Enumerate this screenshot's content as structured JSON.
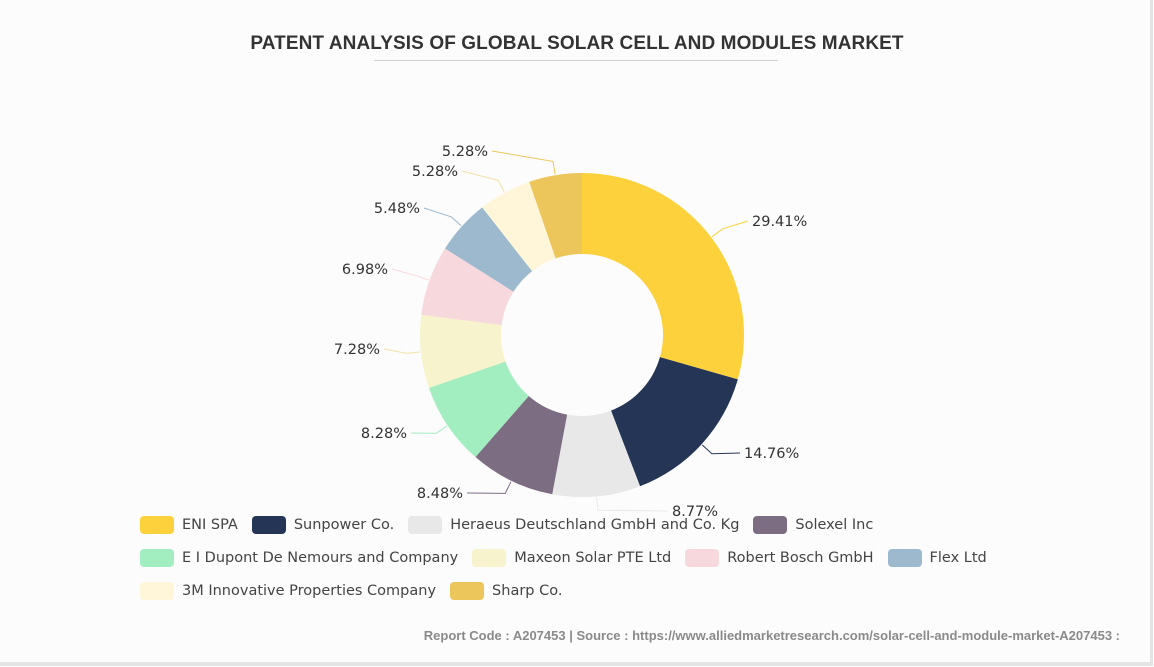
{
  "title": "PATENT ANALYSIS OF GLOBAL SOLAR CELL AND MODULES MARKET",
  "footer": "Report Code : A207453  |  Source : https://www.alliedmarketresearch.com/solar-cell-and-module-market-A207453 :",
  "chart_data": {
    "type": "pie",
    "donut": true,
    "legend_position": "bottom",
    "slices": [
      {
        "label": "ENI SPA",
        "value": 29.41,
        "display": "29.41%",
        "color": "#fdd13b"
      },
      {
        "label": "Sunpower Co.",
        "value": 14.76,
        "display": "14.76%",
        "color": "#243556"
      },
      {
        "label": "Heraeus Deutschland GmbH and Co. Kg",
        "value": 8.77,
        "display": "8.77%",
        "color": "#e8e8e8"
      },
      {
        "label": "Solexel Inc",
        "value": 8.48,
        "display": "8.48%",
        "color": "#7c6d82"
      },
      {
        "label": "E I Dupont De Nemours and Company",
        "value": 8.28,
        "display": "8.28%",
        "color": "#a2eec0"
      },
      {
        "label": "Maxeon Solar PTE Ltd",
        "value": 7.28,
        "display": "7.28%",
        "color": "#f7f3cc"
      },
      {
        "label": "Robert Bosch GmbH",
        "value": 6.98,
        "display": "6.98%",
        "color": "#f7d8dc"
      },
      {
        "label": "Flex Ltd",
        "value": 5.48,
        "display": "5.48%",
        "color": "#9db9ce"
      },
      {
        "label": "3M Innovative Properties Company",
        "value": 5.28,
        "display": "5.28%",
        "color": "#fff5d8"
      },
      {
        "label": "Sharp Co.",
        "value": 5.28,
        "display": "5.28%",
        "color": "#ecc65a"
      }
    ]
  }
}
